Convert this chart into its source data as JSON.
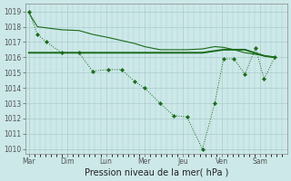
{
  "background_color": "#cce8e8",
  "grid_color": "#aacccc",
  "line_color": "#1a6b1a",
  "xlabel": "Pression niveau de la mer( hPa )",
  "ylim_min": 1009.7,
  "ylim_max": 1019.5,
  "yticks": [
    1010,
    1011,
    1012,
    1013,
    1014,
    1015,
    1016,
    1017,
    1018,
    1019
  ],
  "days": [
    "Mar",
    "Dim",
    "Lun",
    "Mer",
    "Jeu",
    "Ven",
    "Sam"
  ],
  "day_x": [
    0,
    1,
    2,
    3,
    4,
    5,
    6
  ],
  "xlim_min": -0.1,
  "xlim_max": 6.7,
  "s1_x": [
    0.0,
    0.22,
    0.45,
    0.85,
    1.3,
    1.65,
    2.05,
    2.4,
    2.75,
    3.0,
    3.4,
    3.75,
    4.1,
    4.5,
    4.82,
    5.05,
    5.32,
    5.6,
    5.88,
    6.1,
    6.38
  ],
  "s1_y": [
    1019.0,
    1017.5,
    1017.0,
    1016.3,
    1016.3,
    1015.1,
    1015.2,
    1015.2,
    1014.4,
    1014.0,
    1013.0,
    1012.2,
    1012.1,
    1010.0,
    1013.0,
    1015.9,
    1015.9,
    1014.9,
    1016.6,
    1014.6,
    1016.0
  ],
  "s2_x": [
    0.0,
    0.85,
    1.3,
    2.05,
    2.75,
    3.4,
    4.1,
    4.5,
    5.05,
    5.6,
    6.1,
    6.38
  ],
  "s2_y": [
    1016.3,
    1016.3,
    1016.3,
    1016.3,
    1016.3,
    1016.3,
    1016.3,
    1016.3,
    1016.5,
    1016.5,
    1016.1,
    1016.0
  ],
  "s3_x": [
    0.0,
    0.22,
    0.85,
    1.3,
    1.65,
    2.05,
    2.4,
    2.75,
    3.0,
    3.4,
    4.1,
    4.5,
    4.82,
    5.05,
    5.32,
    5.6,
    5.88,
    6.1,
    6.38
  ],
  "s3_y": [
    1018.9,
    1018.0,
    1017.8,
    1017.75,
    1017.5,
    1017.3,
    1017.1,
    1016.9,
    1016.7,
    1016.5,
    1016.5,
    1016.55,
    1016.7,
    1016.65,
    1016.5,
    1016.3,
    1016.2,
    1016.1,
    1016.0
  ],
  "ylabel_fontsize": 5.5,
  "xlabel_fontsize": 7.0,
  "tick_fontsize": 5.5
}
